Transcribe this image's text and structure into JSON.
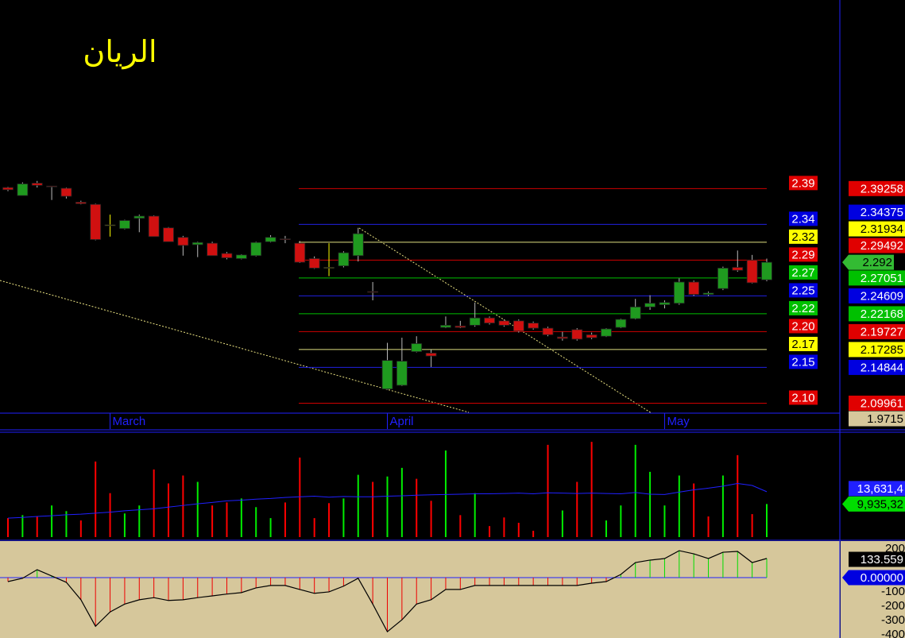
{
  "chart_data": [
    {
      "type": "candlestick",
      "title": "الريان",
      "categories": [
        null,
        null,
        null,
        null,
        null,
        null,
        null,
        "March",
        null,
        null,
        null,
        null,
        null,
        null,
        null,
        null,
        null,
        null,
        null,
        null,
        null,
        null,
        null,
        null,
        null,
        null,
        "April",
        null,
        null,
        null,
        null,
        null,
        null,
        null,
        null,
        null,
        null,
        null,
        null,
        null,
        null,
        null,
        null,
        null,
        null,
        "May",
        null,
        null,
        null,
        null,
        null,
        null,
        null
      ],
      "open": [
        2.394,
        2.383,
        2.4,
        2.396,
        2.393,
        2.374,
        2.371,
        2.343,
        2.338,
        2.352,
        2.355,
        2.339,
        2.326,
        2.316,
        2.318,
        2.304,
        2.297,
        2.301,
        2.32,
        2.324,
        2.318,
        2.297,
        2.285,
        2.287,
        2.301,
        2.252,
        2.119,
        2.124,
        2.17,
        2.168,
        2.203,
        2.205,
        2.206,
        2.216,
        2.212,
        2.212,
        2.209,
        2.202,
        2.19,
        2.2,
        2.193,
        2.191,
        2.203,
        2.215,
        2.231,
        2.234,
        2.236,
        2.265,
        2.248,
        2.256,
        2.285,
        2.295,
        2.268
      ],
      "high": [
        2.395,
        2.401,
        2.403,
        2.396,
        2.394,
        2.376,
        2.372,
        2.357,
        2.35,
        2.357,
        2.356,
        2.34,
        2.328,
        2.32,
        2.32,
        2.306,
        2.303,
        2.32,
        2.329,
        2.328,
        2.321,
        2.3,
        2.318,
        2.307,
        2.339,
        2.265,
        2.182,
        2.189,
        2.191,
        2.173,
        2.218,
        2.212,
        2.237,
        2.218,
        2.214,
        2.214,
        2.211,
        2.204,
        2.197,
        2.202,
        2.196,
        2.202,
        2.215,
        2.242,
        2.247,
        2.24,
        2.27,
        2.267,
        2.252,
        2.286,
        2.308,
        2.302,
        2.297
      ],
      "low": [
        2.389,
        2.383,
        2.394,
        2.377,
        2.379,
        2.371,
        2.322,
        2.327,
        2.337,
        2.333,
        2.327,
        2.32,
        2.301,
        2.299,
        2.301,
        2.296,
        2.296,
        2.3,
        2.319,
        2.318,
        2.291,
        2.283,
        2.273,
        2.285,
        2.293,
        2.24,
        2.118,
        2.123,
        2.169,
        2.149,
        2.202,
        2.202,
        2.204,
        2.207,
        2.204,
        2.196,
        2.2,
        2.191,
        2.185,
        2.185,
        2.187,
        2.19,
        2.202,
        2.214,
        2.227,
        2.229,
        2.234,
        2.246,
        2.246,
        2.254,
        2.279,
        2.263,
        2.266
      ],
      "close": [
        2.391,
        2.399,
        2.397,
        2.395,
        2.382,
        2.372,
        2.323,
        2.343,
        2.349,
        2.355,
        2.327,
        2.32,
        2.315,
        2.319,
        2.301,
        2.298,
        2.302,
        2.319,
        2.326,
        2.323,
        2.292,
        2.284,
        2.285,
        2.305,
        2.331,
        2.251,
        2.158,
        2.157,
        2.181,
        2.164,
        2.206,
        2.203,
        2.216,
        2.209,
        2.206,
        2.198,
        2.202,
        2.193,
        2.188,
        2.187,
        2.189,
        2.201,
        2.214,
        2.231,
        2.236,
        2.237,
        2.265,
        2.248,
        2.25,
        2.284,
        2.281,
        2.264,
        2.292
      ],
      "colors": {
        "up": "#1f9a1f",
        "down": "#d01010",
        "flat": "#ffff00"
      },
      "ylim": [
        2.086,
        2.65
      ],
      "levels": [
        {
          "value": 2.39258,
          "label": "2.39",
          "color": "#e00000"
        },
        {
          "value": 2.34375,
          "label": "2.34",
          "color": "#0000e0"
        },
        {
          "value": 2.31934,
          "label": "2.32",
          "color": "#ffff00"
        },
        {
          "value": 2.29492,
          "label": "2.29",
          "color": "#e00000"
        },
        {
          "value": 2.27051,
          "label": "2.27",
          "color": "#00c000"
        },
        {
          "value": 2.24609,
          "label": "2.25",
          "color": "#0000e0"
        },
        {
          "value": 2.22168,
          "label": "2.22",
          "color": "#00c000"
        },
        {
          "value": 2.19727,
          "label": "2.20",
          "color": "#e00000"
        },
        {
          "value": 2.17285,
          "label": "2.17",
          "color": "#ffff00"
        },
        {
          "value": 2.14844,
          "label": "2.15",
          "color": "#0000e0"
        },
        {
          "value": 2.09961,
          "label": "2.10",
          "color": "#e00000"
        }
      ],
      "last_price": 2.292,
      "last_price_color": "#33bb33",
      "axis_bottom_value": 1.9715
    },
    {
      "type": "volume",
      "values": [
        5700000,
        6600000,
        6200000,
        9500000,
        7800000,
        5000000,
        22700000,
        13200000,
        7100000,
        9500000,
        20300000,
        16100000,
        18500000,
        16600000,
        9500000,
        10400000,
        11600000,
        9000000,
        5700000,
        10400000,
        23900000,
        5700000,
        10200000,
        11600000,
        18700000,
        16600000,
        18200000,
        20800000,
        17500000,
        10900000,
        26000000,
        6600000,
        13200000,
        3300000,
        5900000,
        4300000,
        1900000,
        27700000,
        8000000,
        16600000,
        28600000,
        5000000,
        9500000,
        27700000,
        19600000,
        9500000,
        18500000,
        16100000,
        6200000,
        18500000,
        24600000,
        6900000,
        9935320
      ],
      "colors": [
        "#f00",
        "#0e0",
        "#f00",
        "#0e0",
        "#0e0",
        "#f00",
        "#f00",
        "#f00",
        "#0e0",
        "#0e0",
        "#f00",
        "#f00",
        "#f00",
        "#0e0",
        "#f00",
        "#f00",
        "#0e0",
        "#0e0",
        "#0e0",
        "#f00",
        "#f00",
        "#f00",
        "#f00",
        "#0e0",
        "#0e0",
        "#f00",
        "#0e0",
        "#0e0",
        "#f00",
        "#f00",
        "#0e0",
        "#f00",
        "#0e0",
        "#f00",
        "#f00",
        "#f00",
        "#f00",
        "#f00",
        "#0e0",
        "#f00",
        "#f00",
        "#0e0",
        "#0e0",
        "#0e0",
        "#0e0",
        "#0e0",
        "#0e0",
        "#f00",
        "#f00",
        "#0e0",
        "#f00",
        "#f00",
        "#0e0"
      ],
      "ma": {
        "color": "#2020ff",
        "values": [
          5700000,
          5900000,
          6200000,
          6400000,
          6700000,
          6900000,
          7200000,
          7500000,
          7900000,
          8200000,
          8500000,
          9000000,
          9500000,
          10000000,
          10400000,
          10900000,
          11100000,
          11400000,
          11600000,
          11900000,
          12100000,
          12300000,
          12000000,
          12200000,
          12100000,
          12100000,
          12300000,
          12400000,
          12600000,
          12700000,
          12800000,
          12900000,
          13000000,
          13000000,
          13100000,
          13200000,
          13000000,
          13300000,
          13200000,
          13100000,
          13200000,
          13100000,
          13000000,
          13400000,
          12900000,
          12800000,
          13500000,
          14200000,
          14700000,
          15300000,
          16100000,
          15500000,
          13631400
        ]
      },
      "ma_label": "13,631,4",
      "volume_label": "9,935,32",
      "ylim": [
        0,
        31500000
      ]
    },
    {
      "type": "oscillator",
      "values": [
        -28,
        -5,
        55,
        11,
        -33,
        -155,
        -340,
        -240,
        -185,
        -155,
        -140,
        -160,
        -155,
        -140,
        -128,
        -115,
        -105,
        -72,
        -55,
        -55,
        -83,
        -110,
        -100,
        -60,
        -5,
        -185,
        -378,
        -295,
        -185,
        -155,
        -83,
        -83,
        -55,
        -55,
        -55,
        -55,
        -55,
        -55,
        -55,
        -55,
        -39,
        -28,
        22,
        105,
        122,
        133,
        188,
        166,
        133,
        177,
        183,
        105,
        133.559
      ],
      "zero": {
        "value": 0,
        "label": "0.00000"
      },
      "ylim": [
        -422,
        255
      ],
      "yticks": [
        200,
        -100,
        -200,
        -300,
        -400
      ],
      "background": "#d6c79b",
      "line_color": "#000000",
      "colors": {
        "up": "#00dd00",
        "down": "#ee0000"
      }
    }
  ]
}
